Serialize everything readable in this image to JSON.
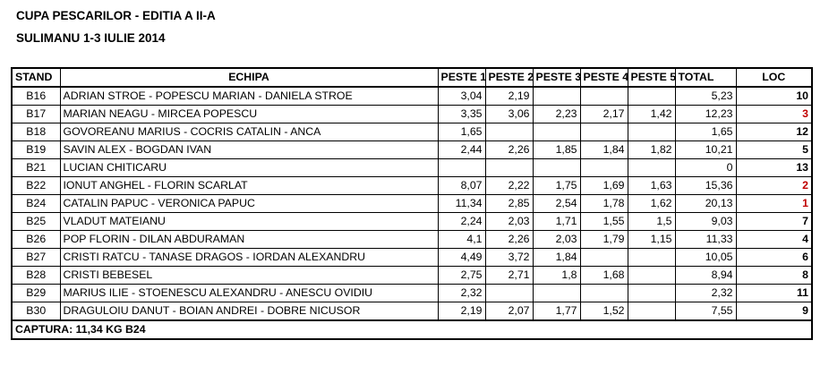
{
  "title_line1": "CUPA PESCARILOR - EDITIA A II-A",
  "title_line2": "SULIMANU 1-3 IULIE 2014",
  "headers": {
    "stand": "STAND",
    "echipa": "ECHIPA",
    "peste1": "PESTE 1",
    "peste2": "PESTE 2",
    "peste3": "PESTE 3",
    "peste4": "PESTE 4",
    "peste5": "PESTE 5",
    "total": "TOTAL",
    "loc": "LOC"
  },
  "rows": [
    {
      "stand": "B16",
      "echipa": "ADRIAN STROE - POPESCU MARIAN - DANIELA STROE",
      "p1": "3,04",
      "p2": "2,19",
      "p3": "",
      "p4": "",
      "p5": "",
      "total": "5,23",
      "loc": "10"
    },
    {
      "stand": "B17",
      "echipa": "MARIAN NEAGU - MIRCEA POPESCU",
      "p1": "3,35",
      "p2": "3,06",
      "p3": "2,23",
      "p4": "2,17",
      "p5": "1,42",
      "total": "12,23",
      "loc": "3"
    },
    {
      "stand": "B18",
      "echipa": "GOVOREANU MARIUS - COCRIS CATALIN - ANCA",
      "p1": "1,65",
      "p2": "",
      "p3": "",
      "p4": "",
      "p5": "",
      "total": "1,65",
      "loc": "12"
    },
    {
      "stand": "B19",
      "echipa": "SAVIN ALEX - BOGDAN IVAN",
      "p1": "2,44",
      "p2": "2,26",
      "p3": "1,85",
      "p4": "1,84",
      "p5": "1,82",
      "total": "10,21",
      "loc": "5"
    },
    {
      "stand": "B21",
      "echipa": "LUCIAN CHITICARU",
      "p1": "",
      "p2": "",
      "p3": "",
      "p4": "",
      "p5": "",
      "total": "0",
      "loc": "13"
    },
    {
      "stand": "B22",
      "echipa": "IONUT ANGHEL - FLORIN SCARLAT",
      "p1": "8,07",
      "p2": "2,22",
      "p3": "1,75",
      "p4": "1,69",
      "p5": "1,63",
      "total": "15,36",
      "loc": "2"
    },
    {
      "stand": "B24",
      "echipa": "CATALIN PAPUC - VERONICA PAPUC",
      "p1": "11,34",
      "p2": "2,85",
      "p3": "2,54",
      "p4": "1,78",
      "p5": "1,62",
      "total": "20,13",
      "loc": "1"
    },
    {
      "stand": "B25",
      "echipa": "VLADUT MATEIANU",
      "p1": "2,24",
      "p2": "2,03",
      "p3": "1,71",
      "p4": "1,55",
      "p5": "1,5",
      "total": "9,03",
      "loc": "7"
    },
    {
      "stand": "B26",
      "echipa": "POP FLORIN - DILAN ABDURAMAN",
      "p1": "4,1",
      "p2": "2,26",
      "p3": "2,03",
      "p4": "1,79",
      "p5": "1,15",
      "total": "11,33",
      "loc": "4"
    },
    {
      "stand": "B27",
      "echipa": "CRISTI RATCU - TANASE DRAGOS - IORDAN ALEXANDRU",
      "p1": "4,49",
      "p2": "3,72",
      "p3": "1,84",
      "p4": "",
      "p5": "",
      "total": "10,05",
      "loc": "6"
    },
    {
      "stand": "B28",
      "echipa": "CRISTI BEBESEL",
      "p1": "2,75",
      "p2": "2,71",
      "p3": "1,8",
      "p4": "1,68",
      "p5": "",
      "total": "8,94",
      "loc": "8"
    },
    {
      "stand": "B29",
      "echipa": "MARIUS ILIE - STOENESCU ALEXANDRU - ANESCU OVIDIU",
      "p1": "2,32",
      "p2": "",
      "p3": "",
      "p4": "",
      "p5": "",
      "total": "2,32",
      "loc": "11"
    },
    {
      "stand": "B30",
      "echipa": "DRAGULOIU DANUT - BOIAN ANDREI - DOBRE NICUSOR",
      "p1": "2,19",
      "p2": "2,07",
      "p3": "1,77",
      "p4": "1,52",
      "p5": "",
      "total": "7,55",
      "loc": "9"
    }
  ],
  "captura": "CAPTURA:  11,34 KG B24",
  "colors": {
    "podium_loc": "#c00000",
    "text": "#000000"
  }
}
